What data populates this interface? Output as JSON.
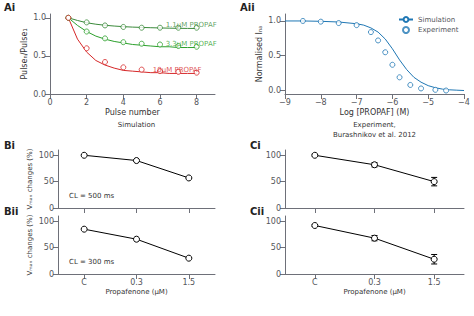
{
  "chart_data": [
    {
      "type": "line",
      "title": "Ai",
      "xlabel": "Pulse number",
      "ylabel": "Pulseₙ/Pulse₁",
      "xlim": [
        0,
        9
      ],
      "ylim": [
        0.0,
        1.05
      ],
      "xticks": [
        0,
        2,
        4,
        6,
        8
      ],
      "yticks": [
        {
          "value": 0.0,
          "label": "0.0"
        },
        0.5,
        {
          "value": 1.0,
          "label": "1.0"
        }
      ],
      "grid": false,
      "series": [
        {
          "type": "line",
          "color": "#3a8a3a",
          "x": [
            1,
            1.5,
            2,
            2.5,
            3,
            3.5,
            4,
            4.5,
            5,
            5.5,
            6,
            6.5,
            7,
            7.5,
            8
          ],
          "values": [
            1.0,
            0.965,
            0.935,
            0.916,
            0.902,
            0.892,
            0.884,
            0.878,
            0.874,
            0.87,
            0.867,
            0.864,
            0.862,
            0.861,
            0.86
          ]
        },
        {
          "type": "scatter",
          "marker": "circle",
          "color": "#3a8a3a",
          "x": [
            1,
            2,
            3,
            4,
            5,
            6,
            7,
            8
          ],
          "values": [
            1.0,
            0.94,
            0.9,
            0.88,
            0.87,
            0.87,
            0.87,
            0.87
          ]
        },
        {
          "type": "line",
          "color": "#2ca02c",
          "x": [
            1,
            1.5,
            2,
            2.5,
            3,
            3.5,
            4,
            4.5,
            5,
            5.5,
            6,
            6.5,
            7,
            7.5,
            8
          ],
          "values": [
            1.0,
            0.9,
            0.82,
            0.76,
            0.72,
            0.69,
            0.67,
            0.65,
            0.64,
            0.63,
            0.62,
            0.62,
            0.61,
            0.61,
            0.61
          ]
        },
        {
          "type": "scatter",
          "marker": "circle",
          "color": "#2ca02c",
          "x": [
            1,
            2,
            3,
            4,
            5,
            6,
            7,
            8
          ],
          "values": [
            1.0,
            0.82,
            0.73,
            0.68,
            0.66,
            0.65,
            0.63,
            0.62
          ]
        },
        {
          "type": "line",
          "color": "#d62728",
          "x": [
            1,
            1.5,
            2,
            2.5,
            3,
            3.5,
            4,
            4.5,
            5,
            5.5,
            6,
            6.5,
            7,
            7.5,
            8
          ],
          "values": [
            1.0,
            0.72,
            0.55,
            0.44,
            0.38,
            0.34,
            0.31,
            0.3,
            0.29,
            0.28,
            0.28,
            0.27,
            0.27,
            0.27,
            0.27
          ]
        },
        {
          "type": "scatter",
          "marker": "circle",
          "color": "#d62728",
          "x": [
            1,
            2,
            3,
            4,
            5,
            6,
            7,
            8
          ],
          "values": [
            1.0,
            0.6,
            0.42,
            0.35,
            0.32,
            0.3,
            0.29,
            0.28
          ]
        }
      ],
      "annotations": [
        {
          "text": "1.1μM PROPAF",
          "x": 6.2,
          "y": 0.9,
          "color": "#3a8a3a"
        },
        {
          "text": "3.3μM PROPAF",
          "x": 6.2,
          "y": 0.65,
          "color": "#2ca02c"
        },
        {
          "text": "10μM PROPAF",
          "x": 5.5,
          "y": 0.32,
          "color": "#d62728"
        }
      ]
    },
    {
      "type": "line",
      "title": "Aii",
      "xlabel": "Log [PROPAF] (M)",
      "ylabel": "Normalised Iₙₐ",
      "xlim": [
        -9,
        -4
      ],
      "ylim": [
        -0.05,
        1.1
      ],
      "xticks": [
        {
          "value": -9,
          "label": "−9"
        },
        {
          "value": -8,
          "label": "−8"
        },
        {
          "value": -7,
          "label": "−7"
        },
        {
          "value": -6,
          "label": "−6"
        },
        {
          "value": -5,
          "label": "−5"
        },
        {
          "value": -4,
          "label": "−4"
        }
      ],
      "yticks": [
        {
          "value": 0.0,
          "label": "0.0"
        },
        0.5,
        {
          "value": 1.0,
          "label": "1.0"
        }
      ],
      "grid": false,
      "legend": "upper right",
      "series": [
        {
          "type": "line",
          "name": "Simulation",
          "color": "#1f77b4",
          "x": [
            -9.0,
            -8.5,
            -8.0,
            -7.5,
            -7.0,
            -6.8,
            -6.6,
            -6.4,
            -6.2,
            -6.0,
            -5.8,
            -5.6,
            -5.4,
            -5.2,
            -5.0,
            -4.8,
            -4.6,
            -4.4,
            -4.2,
            -4.0
          ],
          "values": [
            1.0,
            1.0,
            0.995,
            0.985,
            0.96,
            0.94,
            0.9,
            0.84,
            0.74,
            0.6,
            0.44,
            0.3,
            0.19,
            0.12,
            0.07,
            0.04,
            0.02,
            0.01,
            0.005,
            0.0
          ]
        },
        {
          "type": "scatter",
          "name": "Experiment",
          "marker": "circle",
          "color": "#1f77b4",
          "x": [
            -8.5,
            -8.0,
            -7.5,
            -7.0,
            -6.6,
            -6.4,
            -6.2,
            -6.0,
            -5.8,
            -5.5,
            -5.2,
            -4.8,
            -4.5
          ],
          "values": [
            1.0,
            0.99,
            0.97,
            0.94,
            0.84,
            0.72,
            0.55,
            0.37,
            0.19,
            0.08,
            0.03,
            0.01,
            0.0
          ]
        }
      ]
    },
    {
      "type": "line",
      "title": "Bi",
      "subtitle": "Simulation",
      "ylabel": "Vₘₐₓ changes (%)",
      "categories": [
        null,
        null,
        null
      ],
      "ylim": [
        0,
        110
      ],
      "yticks": [
        0,
        50,
        100
      ],
      "grid": false,
      "series": [
        {
          "color": "black",
          "marker": "circle",
          "values": [
            100,
            90,
            57
          ]
        }
      ],
      "annotations": [
        {
          "text": "CL = 500 ms"
        }
      ]
    },
    {
      "type": "line",
      "title": "Bii",
      "xlabel": "Propafenone (μM)",
      "ylabel": "Vₘₐₓ changes (%)",
      "categories": [
        "C",
        "0.3",
        "1.5"
      ],
      "ylim": [
        0,
        110
      ],
      "yticks": [
        0,
        50,
        100
      ],
      "grid": false,
      "series": [
        {
          "color": "black",
          "marker": "circle",
          "values": [
            85,
            66,
            30
          ]
        }
      ],
      "annotations": [
        {
          "text": "CL = 300 ms"
        }
      ]
    },
    {
      "type": "line",
      "title": "Ci",
      "subtitle": "Experiment,\nBurashnikov et al. 2012",
      "categories": [
        null,
        null,
        null
      ],
      "ylim": [
        0,
        110
      ],
      "yticks": [
        0,
        50,
        100
      ],
      "grid": false,
      "series": [
        {
          "color": "black",
          "marker": "circle",
          "values": [
            100,
            82,
            50
          ],
          "errors": [
            2,
            4,
            8
          ]
        }
      ]
    },
    {
      "type": "line",
      "title": "Cii",
      "xlabel": "Propafenone (μM)",
      "categories": [
        "C",
        "0.3",
        "1.5"
      ],
      "ylim": [
        0,
        110
      ],
      "yticks": [
        0,
        50,
        100
      ],
      "grid": false,
      "series": [
        {
          "color": "black",
          "marker": "circle",
          "values": [
            92,
            68,
            28
          ],
          "errors": [
            2,
            5,
            9
          ]
        }
      ]
    }
  ]
}
